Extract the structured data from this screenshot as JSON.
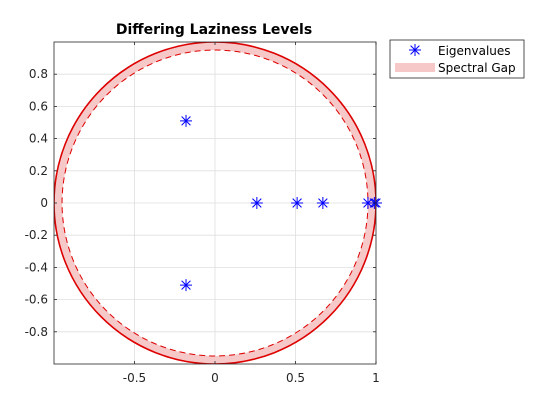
{
  "chart_data": {
    "type": "scatter",
    "title": "Differing Laziness Levels",
    "xlabel": "",
    "ylabel": "",
    "xlim": [
      -1.0,
      1.0
    ],
    "ylim": [
      -1.0,
      1.0
    ],
    "x_ticks": [
      -0.5,
      0,
      0.5,
      1
    ],
    "x_tick_labels": [
      "-0.5",
      "0",
      "0.5",
      "1"
    ],
    "y_ticks": [
      -0.8,
      -0.6,
      -0.4,
      -0.2,
      0,
      0.2,
      0.4,
      0.6,
      0.8
    ],
    "y_tick_labels": [
      "-0.8",
      "-0.6",
      "-0.4",
      "-0.2",
      "0",
      "0.2",
      "0.4",
      "0.6",
      "0.8"
    ],
    "grid": true,
    "legend_position": "outside-top-right",
    "series": [
      {
        "name": "Eigenvalues",
        "marker": "asterisk",
        "color": "#0000ff",
        "points": [
          {
            "x": -0.18,
            "y": 0.51
          },
          {
            "x": -0.18,
            "y": -0.51
          },
          {
            "x": 0.26,
            "y": 0.0
          },
          {
            "x": 0.51,
            "y": 0.0
          },
          {
            "x": 0.67,
            "y": 0.0
          },
          {
            "x": 0.95,
            "y": 0.0
          },
          {
            "x": 0.99,
            "y": 0.0
          },
          {
            "x": 1.0,
            "y": 0.0
          }
        ]
      },
      {
        "name": "Spectral Gap",
        "type": "annulus",
        "inner_radius": 0.95,
        "outer_radius": 1.0,
        "fill_color": "#f7c8c8",
        "edge_color": "#dd0000"
      }
    ]
  }
}
